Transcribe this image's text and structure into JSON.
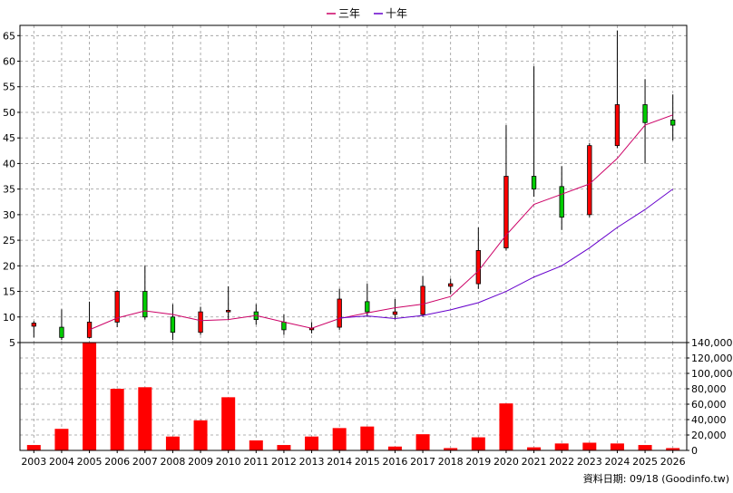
{
  "chart_data": {
    "type": "candlestick+line+bar",
    "legend": [
      {
        "name": "三年",
        "color": "#cc0066"
      },
      {
        "name": "十年",
        "color": "#6600cc"
      }
    ],
    "legend_position": "top-center",
    "grid": true,
    "categories": [
      "2003",
      "2004",
      "2005",
      "2006",
      "2007",
      "2008",
      "2009",
      "2010",
      "2011",
      "2012",
      "2013",
      "2014",
      "2015",
      "2016",
      "2017",
      "2018",
      "2019",
      "2020",
      "2021",
      "2022",
      "2023",
      "2024",
      "2025",
      "2026"
    ],
    "price_axis": {
      "ylim": [
        5,
        67
      ],
      "ticks": [
        5,
        10,
        15,
        20,
        25,
        30,
        35,
        40,
        45,
        50,
        55,
        60,
        65
      ]
    },
    "volume_axis": {
      "ylim": [
        0,
        140000
      ],
      "ticks": [
        0,
        20000,
        40000,
        60000,
        80000,
        100000,
        120000,
        140000
      ],
      "tick_labels": [
        "0",
        "20,000",
        "40,000",
        "60,000",
        "80,000",
        "100,000",
        "120,000",
        "140,000"
      ]
    },
    "candles": [
      {
        "open": 8.2,
        "close": 8.8,
        "high": 9.2,
        "low": 6.0
      },
      {
        "open": 8.0,
        "close": 6.0,
        "high": 11.5,
        "low": 5.5
      },
      {
        "open": 6.0,
        "close": 9.0,
        "high": 13.0,
        "low": 5.8
      },
      {
        "open": 9.0,
        "close": 15.0,
        "high": 15.2,
        "low": 8.0
      },
      {
        "open": 15.0,
        "close": 10.0,
        "high": 20.0,
        "low": 9.5
      },
      {
        "open": 10.0,
        "close": 7.0,
        "high": 12.5,
        "low": 5.5
      },
      {
        "open": 7.0,
        "close": 11.0,
        "high": 12.0,
        "low": 6.5
      },
      {
        "open": 11.0,
        "close": 11.3,
        "high": 16.0,
        "low": 9.5
      },
      {
        "open": 11.0,
        "close": 9.5,
        "high": 12.5,
        "low": 8.5
      },
      {
        "open": 9.0,
        "close": 7.5,
        "high": 10.5,
        "low": 6.5
      },
      {
        "open": 7.5,
        "close": 7.8,
        "high": 9.0,
        "low": 6.8
      },
      {
        "open": 8.0,
        "close": 13.5,
        "high": 15.5,
        "low": 7.5
      },
      {
        "open": 13.0,
        "close": 11.0,
        "high": 16.5,
        "low": 10.0
      },
      {
        "open": 10.5,
        "close": 11.0,
        "high": 13.5,
        "low": 9.5
      },
      {
        "open": 10.5,
        "close": 16.0,
        "high": 18.0,
        "low": 10.0
      },
      {
        "open": 16.0,
        "close": 16.5,
        "high": 17.5,
        "low": 14.5
      },
      {
        "open": 16.5,
        "close": 23.0,
        "high": 27.5,
        "low": 15.5
      },
      {
        "open": 23.5,
        "close": 37.5,
        "high": 47.5,
        "low": 23.0
      },
      {
        "open": 37.5,
        "close": 35.0,
        "high": 59.0,
        "low": 33.5
      },
      {
        "open": 35.5,
        "close": 29.5,
        "high": 39.5,
        "low": 27.0
      },
      {
        "open": 30.0,
        "close": 43.5,
        "high": 44.0,
        "low": 29.5
      },
      {
        "open": 43.5,
        "close": 51.5,
        "high": 66.0,
        "low": 43.0
      },
      {
        "open": 51.5,
        "close": 48.0,
        "high": 56.5,
        "low": 40.0
      },
      {
        "open": 48.5,
        "close": 47.5,
        "high": 53.5,
        "low": 44.5
      }
    ],
    "series": [
      {
        "name": "三年",
        "values": [
          null,
          null,
          7.5,
          9.8,
          11.2,
          10.5,
          9.3,
          9.5,
          10.3,
          9.0,
          7.8,
          9.7,
          10.8,
          11.8,
          12.5,
          14.0,
          19.0,
          26.0,
          32.0,
          34.0,
          36.0,
          41.0,
          47.5,
          49.5
        ]
      },
      {
        "name": "十年",
        "values": [
          null,
          null,
          null,
          null,
          null,
          null,
          null,
          null,
          null,
          null,
          null,
          9.8,
          10.2,
          9.7,
          10.3,
          11.4,
          12.8,
          15.0,
          17.8,
          20.0,
          23.5,
          27.5,
          31.0,
          35.0
        ]
      }
    ],
    "volume": [
      7000,
      28000,
      140000,
      80000,
      82000,
      18000,
      39000,
      69000,
      13000,
      7000,
      18000,
      29000,
      31000,
      5000,
      21000,
      3000,
      17000,
      61000,
      4000,
      9000,
      10000,
      9000,
      7000,
      3000
    ],
    "footer_text": "資料日期: 09/18  (Goodinfo.tw)",
    "colors": {
      "up": "#ff0000",
      "down": "#00cc00",
      "volume": "#ff0000",
      "grid": "#999999"
    }
  }
}
